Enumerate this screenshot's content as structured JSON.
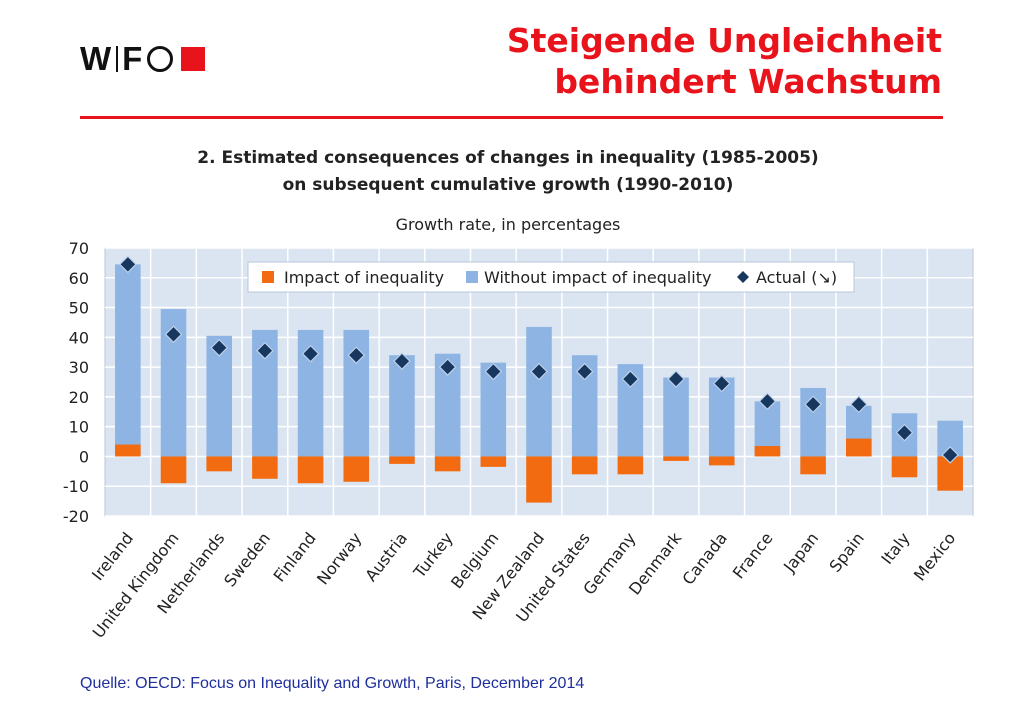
{
  "header": {
    "logo_letters": [
      "W",
      "F"
    ],
    "title_line1": "Steigende Ungleichheit",
    "title_line2": "behindert Wachstum",
    "accent_color": "#e8131b"
  },
  "source": "Quelle: OECD: Focus on Inequality and Growth, Paris, December 2014",
  "chart_data": {
    "type": "bar",
    "title_line1": "2. Estimated consequences of changes in inequality (1985-2005)",
    "title_line2": "on subsequent cumulative growth (1990-2010)",
    "subtitle": "Growth rate, in percentages",
    "ylim": [
      -20,
      70
    ],
    "yticks": [
      70,
      60,
      50,
      40,
      30,
      20,
      10,
      0,
      -10,
      -20
    ],
    "grid": true,
    "legend_position": "top",
    "categories": [
      "Ireland",
      "United Kingdom",
      "Netherlands",
      "Sweden",
      "Finland",
      "Norway",
      "Austria",
      "Turkey",
      "Belgium",
      "New Zealand",
      "United States",
      "Germany",
      "Denmark",
      "Canada",
      "France",
      "Japan",
      "Spain",
      "Italy",
      "Mexico"
    ],
    "series": [
      {
        "name": "Impact of inequality",
        "color": "#f26b10",
        "values": [
          4,
          -9,
          -5,
          -7.5,
          -9,
          -8.5,
          -2.5,
          -5,
          -3.5,
          -15.5,
          -6,
          -6,
          -1.5,
          -3,
          3.5,
          -6,
          6,
          -7,
          -11.5
        ]
      },
      {
        "name": "Without impact of inequality",
        "color": "#8eb4e3",
        "values": [
          64.5,
          49.5,
          40.5,
          42.5,
          42.5,
          42.5,
          34,
          34.5,
          31.5,
          43.5,
          34,
          31,
          26.5,
          26.5,
          18.5,
          23,
          17,
          14.5,
          12
        ]
      },
      {
        "name": "Actual (↘)",
        "color": "#17375e",
        "marker": "diamond",
        "values": [
          64.5,
          41,
          36.5,
          35.5,
          34.5,
          34,
          32,
          30,
          28.5,
          28.5,
          28.5,
          26,
          26,
          24.5,
          18.5,
          17.5,
          17.5,
          8,
          0.5
        ]
      }
    ]
  }
}
